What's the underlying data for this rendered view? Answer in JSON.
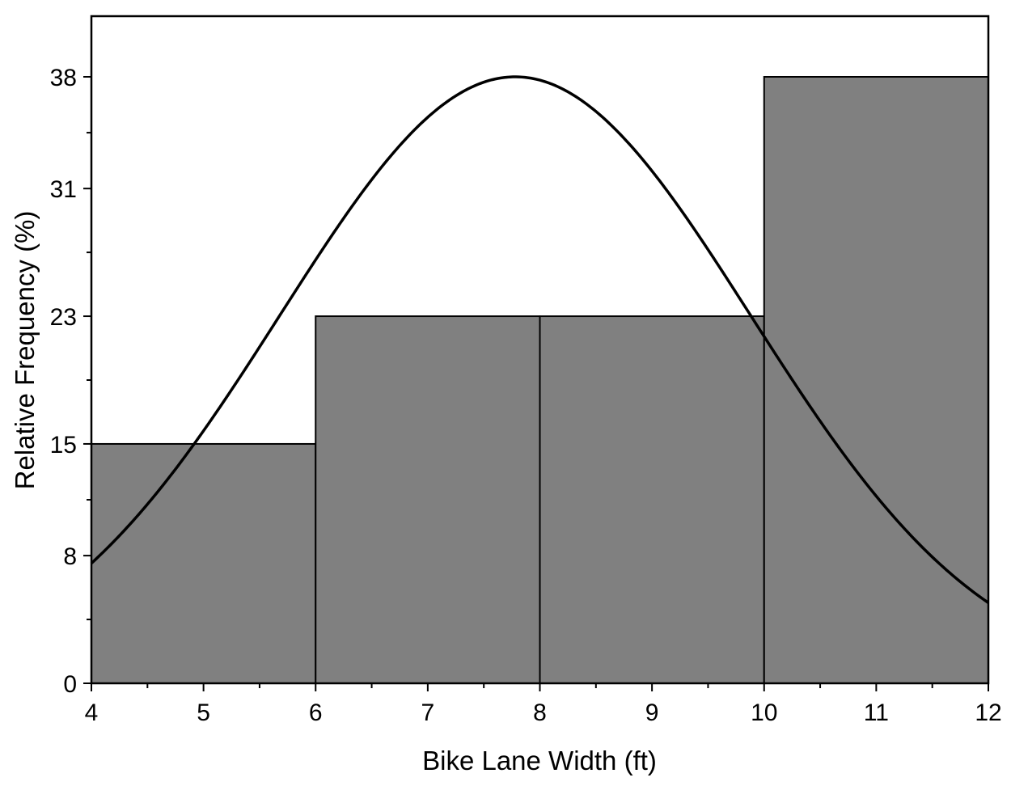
{
  "chart_data": {
    "type": "bar",
    "subtype": "histogram",
    "bins": [
      {
        "start": 4,
        "end": 6,
        "value": 15
      },
      {
        "start": 6,
        "end": 8,
        "value": 23
      },
      {
        "start": 8,
        "end": 10,
        "value": 23
      },
      {
        "start": 10,
        "end": 12,
        "value": 38
      }
    ],
    "curve": {
      "type": "normal",
      "peak_x": 7.78,
      "peak_y": 38,
      "sigma": 2.1
    },
    "xlabel": "Bike Lane Width (ft)",
    "ylabel": "Relative Frequency (%)",
    "xlim": [
      4,
      12
    ],
    "ylim": [
      0,
      41.8
    ],
    "xticks": [
      4,
      5,
      6,
      7,
      8,
      9,
      10,
      11,
      12
    ],
    "yticks": [
      0,
      8,
      15,
      23,
      31,
      38
    ],
    "grid": false,
    "legend": "none",
    "bar_color": "#808080",
    "edge_color": "#000000",
    "curve_color": "#000000"
  }
}
